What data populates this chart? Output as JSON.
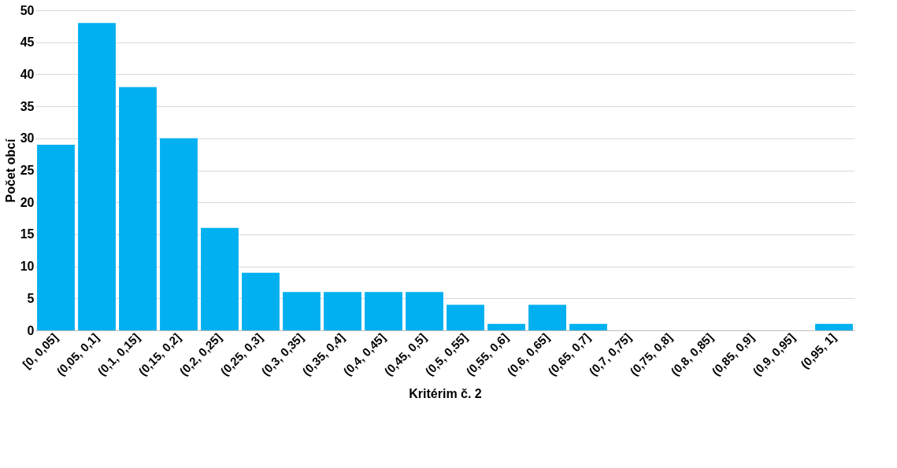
{
  "chart_data": {
    "type": "bar",
    "xlabel": "Kritérim č. 2",
    "ylabel": "Počet obcí",
    "categories": [
      "[0, 0,05]",
      "(0,05, 0,1]",
      "(0,1, 0,15]",
      "(0,15, 0,2]",
      "(0,2, 0,25]",
      "(0,25, 0,3]",
      "(0,3, 0,35]",
      "(0,35, 0,4]",
      "(0,4, 0,45]",
      "(0,45, 0,5]",
      "(0,5, 0,55]",
      "(0,55, 0,6]",
      "(0,6, 0,65]",
      "(0,65, 0,7]",
      "(0,7, 0,75]",
      "(0,75, 0,8]",
      "(0,8, 0,85]",
      "(0,85, 0,9]",
      "(0,9, 0,95]",
      "(0,95, 1]"
    ],
    "values": [
      29,
      48,
      38,
      30,
      16,
      9,
      6,
      6,
      6,
      6,
      4,
      1,
      4,
      1,
      0,
      0,
      0,
      0,
      0,
      1
    ],
    "color": "#00b0f0",
    "ylim": [
      0,
      50
    ],
    "yticks": [
      0,
      5,
      10,
      15,
      20,
      25,
      30,
      35,
      40,
      45,
      50
    ],
    "grid": "y"
  }
}
